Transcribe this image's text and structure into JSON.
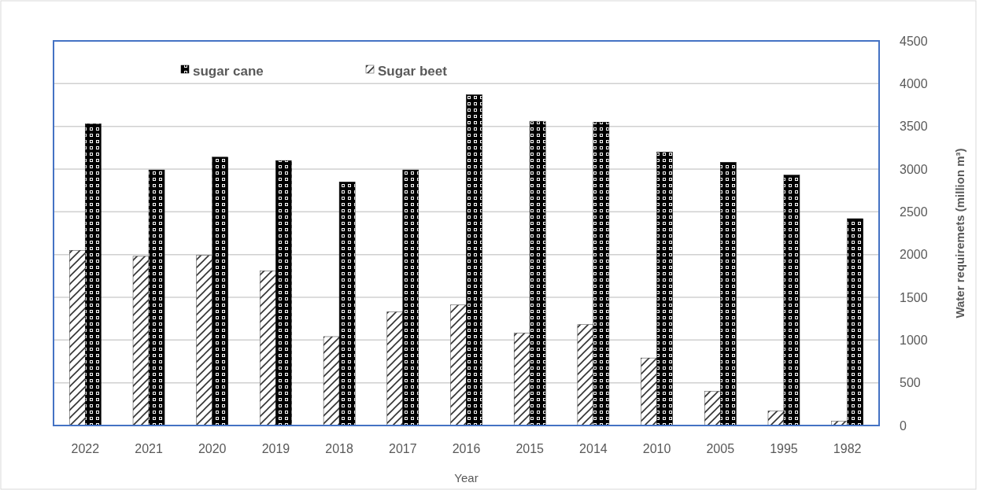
{
  "chart_data": {
    "type": "bar",
    "xlabel": "Year",
    "ylabel": "Water requiremets (million m³)",
    "categories": [
      "2022",
      "2021",
      "2020",
      "2019",
      "2018",
      "2017",
      "2016",
      "2015",
      "2014",
      "2010",
      "2005",
      "1995",
      "1982"
    ],
    "series": [
      {
        "name": "Sugar beet",
        "color": "#333333",
        "values": [
          2050,
          1980,
          1990,
          1810,
          1040,
          1330,
          1410,
          1080,
          1180,
          790,
          400,
          170,
          50
        ]
      },
      {
        "name": "sugar cane",
        "color": "#000000",
        "values": [
          3530,
          2990,
          3140,
          3100,
          2850,
          2990,
          3870,
          3560,
          3550,
          3200,
          3080,
          2930,
          2420
        ]
      }
    ],
    "ylim": [
      0,
      4500
    ],
    "yticks": [
      0,
      500,
      1000,
      1500,
      2000,
      2500,
      3000,
      3500,
      4000,
      4500
    ],
    "grid": "y",
    "legend": "top"
  }
}
